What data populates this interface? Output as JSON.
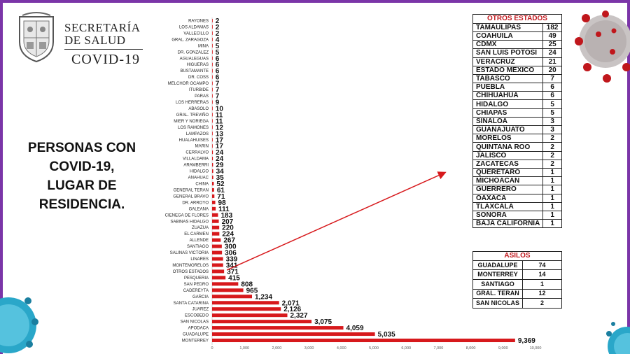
{
  "header": {
    "line1": "SECRETARÍA",
    "line2": "DE SALUD",
    "line3": "COVID-19"
  },
  "caption": {
    "lines": [
      "PERSONAS CON",
      "COVID-19,",
      "LUGAR DE",
      "RESIDENCIA."
    ]
  },
  "colors": {
    "bar": "#d7191c",
    "arrow": "#d7191c",
    "frame": "#7b35a8",
    "table_header": "#c0171c"
  },
  "chart_data": {
    "type": "bar",
    "orientation": "horizontal",
    "categories": [
      "RAYONES",
      "LOS ALDAMAS",
      "VALLECILLO",
      "GRAL. ZARAGOZA",
      "MINA",
      "DR. GONZALEZ",
      "AGUALEGUAS",
      "HIGUERAS",
      "BUSTAMANTE",
      "DR. COSS",
      "MELCHOR OCAMPO",
      "ITURBIDE",
      "PARAS",
      "LOS HERRERAS",
      "ABASOLO",
      "GRAL. TREVIÑO",
      "MIER Y NORIEGA",
      "LOS RAMONES",
      "LAMPAZOS",
      "HUALAHUISES",
      "MARIN",
      "CERRALVO",
      "VILLALDAMA",
      "ARAMBERRI",
      "HIDALGO",
      "ANAHUAC",
      "CHINA",
      "GENERAL TERAN",
      "GENERAL BRAVO",
      "DR. ARROYO",
      "GALEANA",
      "CIENEGA DE FLORES",
      "SABINAS HIDALGO",
      "ZUAZUA",
      "EL CARMEN",
      "ALLENDE",
      "SANTIAGO",
      "SALINAS VICTORIA",
      "LINARES",
      "MONTEMORELOS",
      "OTROS ESTADOS",
      "PESQUERIA",
      "SAN PEDRO",
      "CADEREYTA",
      "GARCIA",
      "SANTA CATARINA",
      "JUAREZ",
      "ESCOBEDO",
      "SAN NICOLAS",
      "APODACA",
      "GUADALUPE",
      "MONTERREY"
    ],
    "values": [
      2,
      2,
      2,
      4,
      5,
      5,
      6,
      6,
      6,
      6,
      7,
      7,
      7,
      9,
      10,
      11,
      11,
      12,
      13,
      17,
      17,
      24,
      24,
      29,
      34,
      35,
      52,
      61,
      71,
      98,
      111,
      183,
      207,
      220,
      224,
      267,
      300,
      306,
      339,
      341,
      371,
      415,
      808,
      965,
      1234,
      2071,
      2126,
      2327,
      3075,
      4059,
      5035,
      9369
    ],
    "value_labels": [
      "2",
      "2",
      "2",
      "4",
      "5",
      "5",
      "6",
      "6",
      "6",
      "6",
      "7",
      "7",
      "7",
      "9",
      "10",
      "11",
      "11",
      "12",
      "13",
      "17",
      "17",
      "24",
      "24",
      "29",
      "34",
      "35",
      "52",
      "61",
      "71",
      "98",
      "111",
      "183",
      "207",
      "220",
      "224",
      "267",
      "300",
      "306",
      "339",
      "341",
      "371",
      "415",
      "808",
      "965",
      "1,234",
      "2,071",
      "2,126",
      "2,327",
      "3,075",
      "4,059",
      "5,035",
      "9,369"
    ],
    "xlim": [
      0,
      10000
    ],
    "xticks": [
      0,
      1000,
      2000,
      3000,
      4000,
      5000,
      6000,
      7000,
      8000,
      9000,
      10000
    ],
    "xtick_labels": [
      "0",
      "1,000",
      "2,000",
      "3,000",
      "4,000",
      "5,000",
      "6,000",
      "7,000",
      "8,000",
      "9,000",
      "10,000"
    ],
    "grid": false,
    "title": "",
    "xlabel": "",
    "ylabel": ""
  },
  "otros_estados": {
    "title": "OTROS ESTADOS",
    "rows": [
      {
        "name": "TAMAULIPAS",
        "value": "182"
      },
      {
        "name": "COAHUILA",
        "value": "49"
      },
      {
        "name": "CDMX",
        "value": "25"
      },
      {
        "name": "SAN LUIS POTOSI",
        "value": "24"
      },
      {
        "name": "VERACRUZ",
        "value": "21"
      },
      {
        "name": "ESTADO MEXICO",
        "value": "20"
      },
      {
        "name": "TABASCO",
        "value": "7"
      },
      {
        "name": "PUEBLA",
        "value": "6"
      },
      {
        "name": "CHIHUAHUA",
        "value": "6"
      },
      {
        "name": "HIDALGO",
        "value": "5"
      },
      {
        "name": "CHIAPAS",
        "value": "5"
      },
      {
        "name": "SINALOA",
        "value": "3"
      },
      {
        "name": "GUANAJUATO",
        "value": "3"
      },
      {
        "name": "MORELOS",
        "value": "2"
      },
      {
        "name": "QUINTANA ROO",
        "value": "2"
      },
      {
        "name": "JALISCO",
        "value": "2"
      },
      {
        "name": "ZACATECAS",
        "value": "2"
      },
      {
        "name": "QUERETARO",
        "value": "1"
      },
      {
        "name": "MICHOACAN",
        "value": "1"
      },
      {
        "name": "GUERRERO",
        "value": "1"
      },
      {
        "name": "OAXACA",
        "value": "1"
      },
      {
        "name": "TLAXCALA",
        "value": "1"
      },
      {
        "name": "SONORA",
        "value": "1"
      },
      {
        "name": "BAJA CALIFORNIA",
        "value": "1"
      }
    ]
  },
  "asilos": {
    "title": "ASILOS",
    "rows": [
      {
        "name": "GUADALUPE",
        "value": "74"
      },
      {
        "name": "MONTERREY",
        "value": "14"
      },
      {
        "name": "SANTIAGO",
        "value": "1"
      },
      {
        "name": "GRAL. TERAN",
        "value": "12"
      },
      {
        "name": "SAN NICOLAS",
        "value": "2"
      }
    ]
  },
  "icons": {
    "seal": "state-seal-icon",
    "virus": "coronavirus-icon"
  }
}
